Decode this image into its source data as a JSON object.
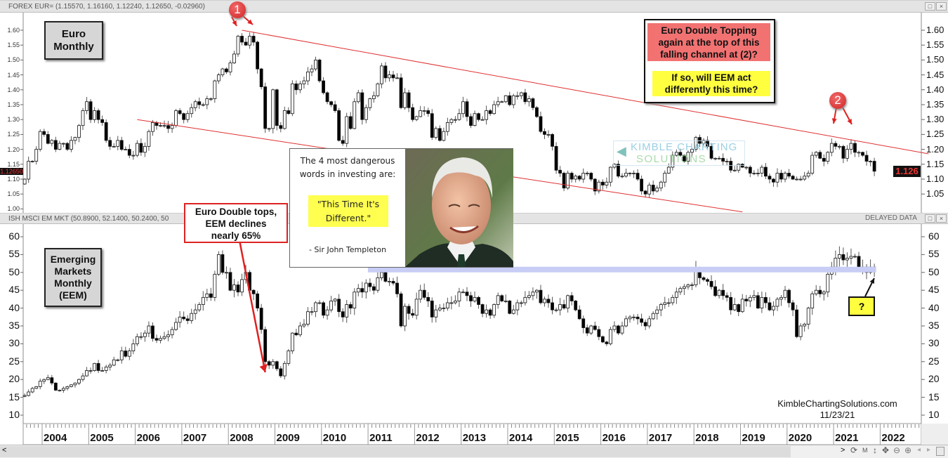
{
  "window": {
    "top_title": "FOREX EUR= (1.15570, 1.16160, 1.12240, 1.12650, -0.02960)",
    "bottom_title": "ISH MSCI EM MKT (50.8900, 52.1400, 50.2400, 50",
    "delayed_label": "DELAYED DATA",
    "restore_icon": "□",
    "close_icon": "×"
  },
  "labels": {
    "euro_box": [
      "Euro",
      "Monthly"
    ],
    "eem_box": [
      "Emerging",
      "Markets",
      "Monthly",
      "(EEM)"
    ],
    "question_top": [
      "Euro Double Topping",
      "again at the top of this",
      "falling channel at (2)?"
    ],
    "question_bottom": [
      "If so, will EEM act",
      "differently this time?"
    ],
    "callout": [
      "Euro Double tops,",
      "EEM declines",
      "nearly 65%"
    ],
    "marker_1": "1",
    "marker_2": "2",
    "question_mark": "?",
    "quote_intro": [
      "The 4 most dangerous",
      "words in investing are:"
    ],
    "quote_text": [
      "\"This Time It's",
      "Different.\""
    ],
    "quote_author": "- Sir John Templeton",
    "watermark": [
      "KIMBLE CHARTING",
      "SOLUTIONS"
    ],
    "site": "KimbleChartingSolutions.com",
    "date": "11/23/21",
    "last_price_left": "1.12650",
    "last_price_right": "1.126"
  },
  "toolbar": {
    "scroll_left": "<",
    "scroll_right": ">",
    "refresh": "⟳",
    "m": "M",
    "vert": "↕",
    "move": "✥",
    "zoom_out": "⊖",
    "zoom_in": "⊕",
    "prev": "◂",
    "next": "▸"
  },
  "colors": {
    "up_fill": "#ffffff",
    "down_fill": "#000000",
    "trendline": "#e03030",
    "support_band": "#c8cdf5",
    "accent_red": "#f07070",
    "highlight_yellow": "#ffff40"
  },
  "x_axis": {
    "years": [
      "2004",
      "2005",
      "2006",
      "2007",
      "2008",
      "2009",
      "2010",
      "2011",
      "2012",
      "2013",
      "2014",
      "2015",
      "2016",
      "2017",
      "2018",
      "2019",
      "2020",
      "2021",
      "2022"
    ]
  },
  "chart_data": [
    {
      "type": "candlestick",
      "title": "FOREX EUR=",
      "interval": "monthly",
      "start": "2003-08",
      "ylim": [
        1.0,
        1.6
      ],
      "left_ticks": [
        "1.60",
        "1.55",
        "1.50",
        "1.45",
        "1.40",
        "1.35",
        "1.30",
        "1.25",
        "1.20",
        "1.15",
        "1.10",
        "1.05",
        "1.00"
      ],
      "right_ticks": [
        "1.60",
        "1.55",
        "1.50",
        "1.45",
        "1.40",
        "1.35",
        "1.30",
        "1.25",
        "1.20",
        "1.15",
        "1.10",
        "1.05"
      ],
      "closes": [
        1.1,
        1.16,
        1.16,
        1.2,
        1.26,
        1.25,
        1.22,
        1.23,
        1.2,
        1.22,
        1.22,
        1.2,
        1.23,
        1.24,
        1.28,
        1.33,
        1.36,
        1.3,
        1.33,
        1.3,
        1.29,
        1.23,
        1.21,
        1.21,
        1.23,
        1.2,
        1.2,
        1.18,
        1.18,
        1.22,
        1.19,
        1.21,
        1.26,
        1.29,
        1.28,
        1.28,
        1.28,
        1.27,
        1.28,
        1.33,
        1.32,
        1.3,
        1.32,
        1.34,
        1.36,
        1.35,
        1.35,
        1.37,
        1.37,
        1.43,
        1.45,
        1.47,
        1.46,
        1.49,
        1.52,
        1.58,
        1.56,
        1.55,
        1.58,
        1.56,
        1.47,
        1.41,
        1.27,
        1.27,
        1.4,
        1.28,
        1.27,
        1.33,
        1.32,
        1.42,
        1.4,
        1.42,
        1.43,
        1.46,
        1.47,
        1.5,
        1.43,
        1.39,
        1.36,
        1.35,
        1.33,
        1.23,
        1.22,
        1.31,
        1.27,
        1.36,
        1.39,
        1.3,
        1.34,
        1.37,
        1.38,
        1.42,
        1.48,
        1.44,
        1.45,
        1.44,
        1.44,
        1.34,
        1.39,
        1.34,
        1.3,
        1.31,
        1.33,
        1.33,
        1.32,
        1.24,
        1.27,
        1.23,
        1.26,
        1.29,
        1.3,
        1.3,
        1.32,
        1.36,
        1.31,
        1.28,
        1.32,
        1.3,
        1.3,
        1.33,
        1.32,
        1.35,
        1.36,
        1.36,
        1.38,
        1.35,
        1.38,
        1.38,
        1.39,
        1.36,
        1.37,
        1.34,
        1.31,
        1.26,
        1.25,
        1.25,
        1.21,
        1.13,
        1.12,
        1.07,
        1.12,
        1.1,
        1.11,
        1.1,
        1.12,
        1.12,
        1.1,
        1.06,
        1.09,
        1.08,
        1.09,
        1.14,
        1.15,
        1.11,
        1.11,
        1.12,
        1.12,
        1.12,
        1.1,
        1.06,
        1.05,
        1.08,
        1.06,
        1.07,
        1.09,
        1.12,
        1.14,
        1.18,
        1.19,
        1.18,
        1.16,
        1.19,
        1.2,
        1.24,
        1.22,
        1.23,
        1.21,
        1.17,
        1.17,
        1.17,
        1.16,
        1.16,
        1.13,
        1.13,
        1.15,
        1.14,
        1.14,
        1.12,
        1.12,
        1.12,
        1.14,
        1.11,
        1.1,
        1.09,
        1.12,
        1.1,
        1.12,
        1.11,
        1.1,
        1.1,
        1.1,
        1.11,
        1.12,
        1.18,
        1.19,
        1.17,
        1.16,
        1.19,
        1.22,
        1.21,
        1.21,
        1.17,
        1.2,
        1.22,
        1.19,
        1.19,
        1.18,
        1.16,
        1.16,
        1.1265
      ],
      "last": {
        "open": 1.1557,
        "high": 1.1616,
        "low": 1.1224,
        "close": 1.1265,
        "change": -0.0296
      },
      "trendlines": [
        {
          "name": "channel-top",
          "from": {
            "date": "2008-04",
            "value": 1.6
          },
          "to": {
            "date": "2023-01",
            "value": 1.185
          }
        },
        {
          "name": "channel-bottom",
          "from": {
            "date": "2006-01",
            "value": 1.3
          },
          "to": {
            "date": "2019-01",
            "value": 0.99
          }
        }
      ]
    },
    {
      "type": "candlestick",
      "title": "ISH MSCI EM MKT",
      "interval": "monthly",
      "start": "2003-08",
      "ylim": [
        10,
        60
      ],
      "left_ticks": [
        "60",
        "55",
        "50",
        "45",
        "40",
        "35",
        "30",
        "25",
        "20",
        "15",
        "10"
      ],
      "right_ticks": [
        "60",
        "55",
        "50",
        "45",
        "40",
        "35",
        "30",
        "25",
        "20",
        "15",
        "10"
      ],
      "closes": [
        15.5,
        16.5,
        17.5,
        18,
        19.5,
        20,
        20.5,
        19,
        17,
        17,
        17.5,
        18,
        18.5,
        19,
        20,
        21,
        22.5,
        22.5,
        24.5,
        22.5,
        22.5,
        23.5,
        24,
        25.5,
        25.5,
        28,
        26.5,
        28,
        30,
        32,
        32,
        33,
        35,
        31.5,
        31,
        31.5,
        32,
        32.5,
        34,
        36,
        37.5,
        37,
        36.5,
        38.5,
        39.5,
        41,
        43,
        44,
        43,
        49.5,
        55,
        50,
        50,
        45,
        46.5,
        44.5,
        48,
        50,
        45,
        44,
        40,
        34,
        25,
        24,
        25,
        23,
        21,
        24.5,
        28,
        33,
        32.5,
        35,
        35.5,
        39,
        39,
        41.5,
        41.5,
        38,
        39.5,
        42,
        42.5,
        39,
        37.5,
        41,
        40,
        44.5,
        45.5,
        44.5,
        47,
        46,
        45,
        48.5,
        50,
        47.5,
        47.5,
        47,
        44,
        35,
        40.5,
        38.5,
        38,
        42.5,
        45,
        43,
        42,
        37.5,
        39.5,
        40,
        40,
        41.5,
        41.5,
        42,
        44.5,
        44.5,
        43.5,
        42,
        43,
        41,
        38.5,
        39.5,
        38,
        41,
        43.5,
        42,
        42,
        38.5,
        39.5,
        41.5,
        41.5,
        43,
        43.5,
        44.5,
        45,
        41.5,
        42.5,
        41.5,
        39.5,
        39.5,
        41,
        40,
        43.5,
        42,
        39.5,
        37,
        34.5,
        33,
        35,
        34,
        32,
        30.5,
        30,
        34,
        35,
        33,
        35,
        37,
        37.5,
        37.5,
        37,
        36,
        35,
        37,
        38.5,
        39.5,
        41,
        41.5,
        41.5,
        43,
        44.5,
        45.5,
        46,
        46.5,
        46.5,
        51,
        48.5,
        48,
        47.5,
        46,
        43.5,
        45,
        43.5,
        43,
        39.5,
        41,
        39,
        42.5,
        42,
        43,
        43.5,
        40,
        43,
        41.5,
        39.5,
        40.5,
        42.5,
        43,
        45,
        41.5,
        39.5,
        32,
        35,
        35.5,
        40,
        44,
        45,
        44,
        44.5,
        49.5,
        51.5,
        54,
        55,
        53.5,
        54,
        54.5,
        54.5,
        51.5,
        51.5,
        50,
        51.5,
        50.65
      ],
      "last": {
        "open": 50.89,
        "high": 52.14,
        "low": 50.24
      },
      "support_band": {
        "value": 50.8,
        "from": "2011-01",
        "to": "2021-12"
      },
      "arrow": {
        "from": {
          "date": "2008-03",
          "value": 61
        },
        "to": {
          "date": "2008-10",
          "value": 22
        }
      }
    }
  ]
}
